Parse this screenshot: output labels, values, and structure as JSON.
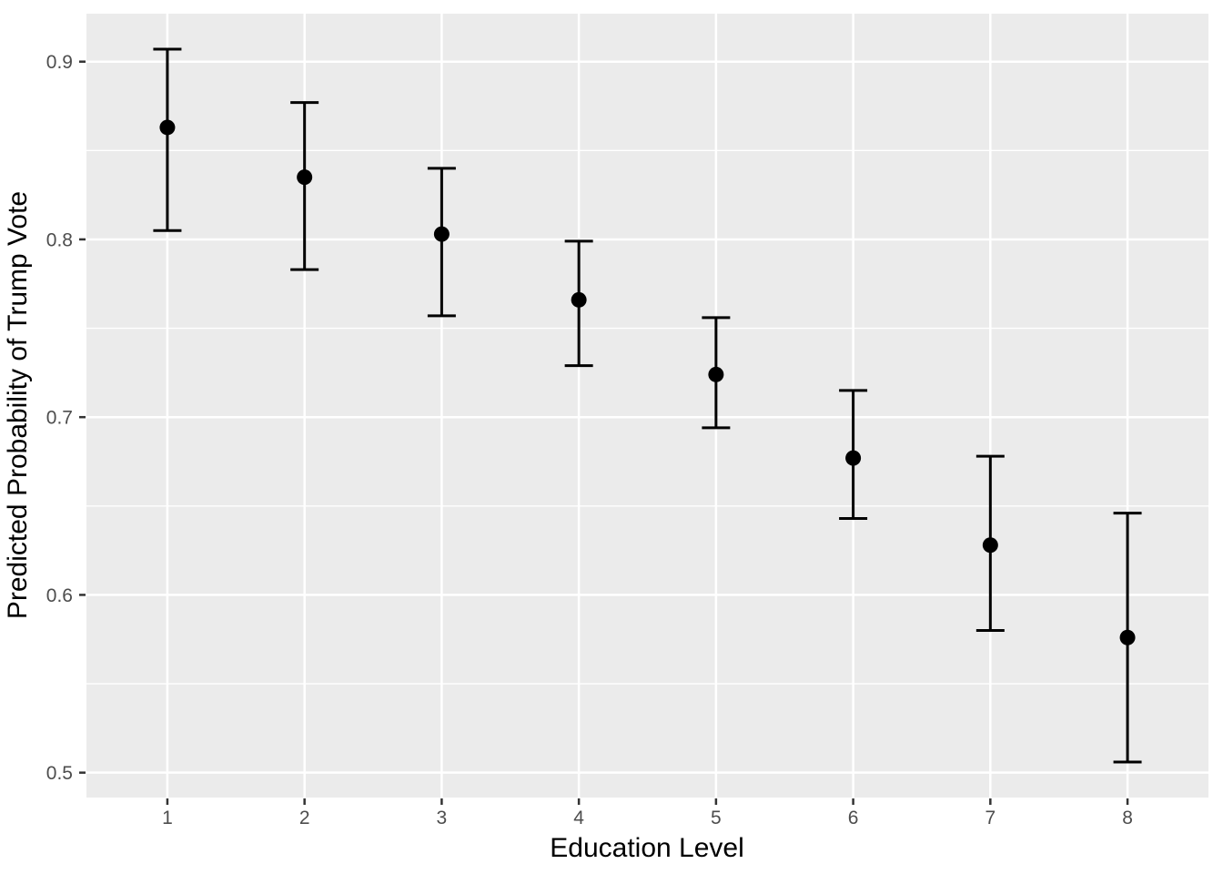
{
  "figure": {
    "background": "#FFFFFF",
    "title": ""
  },
  "chart_data": {
    "type": "scatter",
    "subtype": "point-estimate-with-error-bars",
    "title": "",
    "xlabel": "Education Level",
    "ylabel": "Predicted Probability of Trump Vote",
    "legend": "none",
    "x": [
      1,
      2,
      3,
      4,
      5,
      6,
      7,
      8
    ],
    "series": [
      {
        "name": "predicted-probability",
        "values": [
          0.863,
          0.835,
          0.803,
          0.766,
          0.724,
          0.677,
          0.628,
          0.576
        ],
        "lower": [
          0.805,
          0.783,
          0.757,
          0.729,
          0.694,
          0.643,
          0.58,
          0.506
        ],
        "upper": [
          0.907,
          0.877,
          0.84,
          0.799,
          0.756,
          0.715,
          0.678,
          0.646
        ]
      }
    ],
    "x_tick_labels": [
      "1",
      "2",
      "3",
      "4",
      "5",
      "6",
      "7",
      "8"
    ],
    "y_ticks": [
      0.5,
      0.6,
      0.7,
      0.8,
      0.9
    ],
    "y_tick_labels": [
      "0.5",
      "0.6",
      "0.7",
      "0.8",
      "0.9"
    ],
    "y_minor_gridlines": [
      0.55,
      0.65,
      0.75,
      0.85
    ],
    "xlim": [
      0.41,
      8.59
    ],
    "ylim": [
      0.486,
      0.927
    ],
    "grid": "horizontal major+minor, vertical major only",
    "style": {
      "panel_background": "#EBEBEB",
      "grid_color": "#FFFFFF",
      "point_color": "#000000",
      "errorbar_color": "#000000",
      "tick_mark_color": "#333333",
      "tick_label_color": "#4D4D4D",
      "axis_title_color": "#000000"
    }
  }
}
